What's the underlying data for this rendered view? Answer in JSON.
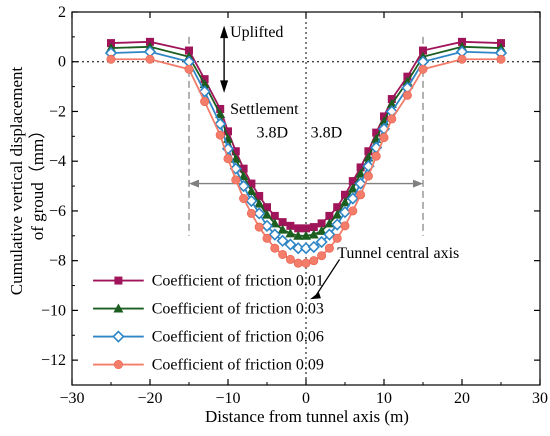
{
  "chart_data": {
    "type": "line",
    "xlabel": "Distance from tunnel axis (m)",
    "ylabel_lines": [
      "Cumulative vertical displacement",
      "of groud（mm）"
    ],
    "xlim": [
      -30,
      30
    ],
    "ylim": [
      -13,
      2
    ],
    "xticks": [
      -30,
      -20,
      -10,
      0,
      10,
      20,
      30
    ],
    "yticks": [
      2,
      0,
      -2,
      -4,
      -6,
      -8,
      -10,
      -12
    ],
    "grid": false,
    "legend_position": "bottom-left",
    "x": [
      -25,
      -20,
      -15,
      -13,
      -11,
      -10,
      -9,
      -8,
      -7,
      -6,
      -5,
      -4,
      -3,
      -2,
      -1,
      0,
      1,
      2,
      3,
      4,
      5,
      6,
      7,
      8,
      9,
      10,
      11,
      13,
      15,
      20,
      25
    ],
    "series": [
      {
        "name": "Coefficient of friction 0.01",
        "color": "#a0155a",
        "marker": "square",
        "values": [
          0.75,
          0.8,
          0.45,
          -0.7,
          -1.9,
          -2.8,
          -3.6,
          -4.3,
          -4.9,
          -5.4,
          -5.85,
          -6.2,
          -6.45,
          -6.6,
          -6.7,
          -6.7,
          -6.65,
          -6.5,
          -6.2,
          -5.85,
          -5.35,
          -4.8,
          -4.25,
          -3.6,
          -2.85,
          -2.2,
          -1.5,
          -0.6,
          0.45,
          0.8,
          0.75
        ]
      },
      {
        "name": "Coefficient of friction 0.03",
        "color": "#1b5e20",
        "marker": "triangle",
        "values": [
          0.55,
          0.6,
          0.2,
          -0.9,
          -2.1,
          -3.1,
          -3.9,
          -4.6,
          -5.2,
          -5.7,
          -6.15,
          -6.5,
          -6.75,
          -6.9,
          -7.0,
          -7.0,
          -6.95,
          -6.8,
          -6.5,
          -6.15,
          -5.65,
          -5.1,
          -4.5,
          -3.85,
          -3.1,
          -2.4,
          -1.7,
          -0.8,
          0.2,
          0.6,
          0.55
        ]
      },
      {
        "name": "Coefficient of friction 0.06",
        "color": "#2f86c6",
        "marker": "diamond",
        "values": [
          0.35,
          0.4,
          0.0,
          -1.2,
          -2.5,
          -3.5,
          -4.3,
          -5.0,
          -5.6,
          -6.1,
          -6.6,
          -6.95,
          -7.2,
          -7.35,
          -7.5,
          -7.5,
          -7.45,
          -7.25,
          -6.95,
          -6.55,
          -6.05,
          -5.5,
          -4.9,
          -4.2,
          -3.45,
          -2.7,
          -2.0,
          -1.05,
          0.0,
          0.4,
          0.35
        ]
      },
      {
        "name": "Coefficient of friction 0.09",
        "color": "#f47c6a",
        "marker": "circle",
        "values": [
          0.1,
          0.1,
          -0.3,
          -1.6,
          -2.95,
          -3.9,
          -4.75,
          -5.5,
          -6.1,
          -6.65,
          -7.1,
          -7.5,
          -7.75,
          -7.95,
          -8.1,
          -8.1,
          -8.0,
          -7.8,
          -7.5,
          -7.1,
          -6.6,
          -6.0,
          -5.35,
          -4.6,
          -3.8,
          -3.05,
          -2.3,
          -1.35,
          -0.3,
          0.1,
          0.1
        ]
      }
    ],
    "annotations": {
      "uplifted": "Uplifted",
      "settlement": "Settlement",
      "left_width": "3.8D",
      "right_width": "3.8D",
      "tunnel_axis": "Tunnel central axis"
    },
    "reference_lines": {
      "zero_line_y": 0,
      "tunnel_axis_x": 0,
      "influence_bounds_x": [
        -15,
        15
      ],
      "width_arrow_y": -4.9
    }
  }
}
